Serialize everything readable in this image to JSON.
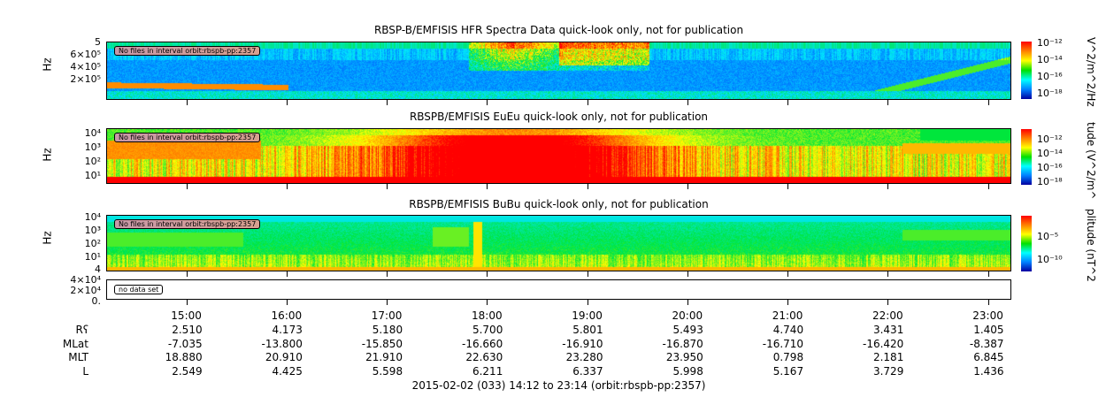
{
  "chart_data": [
    {
      "type": "heatmap",
      "title": "RBSP-B/EMFISIS  HFR Spectra Data quick-look only, not for publication",
      "ylabel": "Hz",
      "ytick_labels": [
        "5",
        "6×10⁵",
        "4×10⁵",
        "2×10⁵"
      ],
      "note": "No files in interval orbit:rbspb-pp:2357",
      "colorbar": {
        "label": "V^2/m^2/Hz",
        "ticks": [
          "10⁻¹²",
          "10⁻¹⁴",
          "10⁻¹⁶",
          "10⁻¹⁸"
        ]
      }
    },
    {
      "type": "heatmap",
      "title": "RBSPB/EMFISIS  EuEu quick-look only, not for publication",
      "ylabel": "Hz",
      "ytick_labels": [
        "10⁴",
        "10³",
        "10²",
        "10¹"
      ],
      "note": "No files in interval orbit:rbspb-pp:2357",
      "colorbar": {
        "label": "tude (V^2/m^",
        "ticks": [
          "10⁻¹²",
          "10⁻¹⁴",
          "10⁻¹⁶",
          "10⁻¹⁸"
        ]
      }
    },
    {
      "type": "heatmap",
      "title": "RBSPB/EMFISIS  BuBu quick-look only, not for publication",
      "ylabel": "Hz",
      "ytick_labels": [
        "10⁴",
        "10³",
        "10²",
        "10¹"
      ],
      "note": "No files in interval orbit:rbspb-pp:2357",
      "colorbar": {
        "label": "plitude (nT^2",
        "ticks": [
          "10⁻⁵",
          "10⁻¹⁰"
        ]
      }
    },
    {
      "type": "line",
      "ytick_labels": [
        "4",
        "4×10⁴",
        "2×10⁴",
        "0."
      ],
      "note": "no data set"
    }
  ],
  "x_ticks": [
    "15:00",
    "16:00",
    "17:00",
    "18:00",
    "19:00",
    "20:00",
    "21:00",
    "22:00",
    "23:00"
  ],
  "ephemeris": [
    {
      "label": "Rʕ",
      "values": [
        "2.510",
        "4.173",
        "5.180",
        "5.700",
        "5.801",
        "5.493",
        "4.740",
        "3.431",
        "1.405"
      ]
    },
    {
      "label": "MLat",
      "values": [
        "-7.035",
        "-13.800",
        "-15.850",
        "-16.660",
        "-16.910",
        "-16.870",
        "-16.710",
        "-16.420",
        "-8.387"
      ]
    },
    {
      "label": "MLT",
      "values": [
        "18.880",
        "20.910",
        "21.910",
        "22.630",
        "23.280",
        "23.950",
        "0.798",
        "2.181",
        "6.845"
      ]
    },
    {
      "label": "L",
      "values": [
        "2.549",
        "4.425",
        "5.598",
        "6.211",
        "6.337",
        "5.998",
        "5.167",
        "3.729",
        "1.436"
      ]
    }
  ],
  "footer": "2015-02-02 (033) 14:12 to 23:14 (orbit:rbspb-pp:2357)"
}
